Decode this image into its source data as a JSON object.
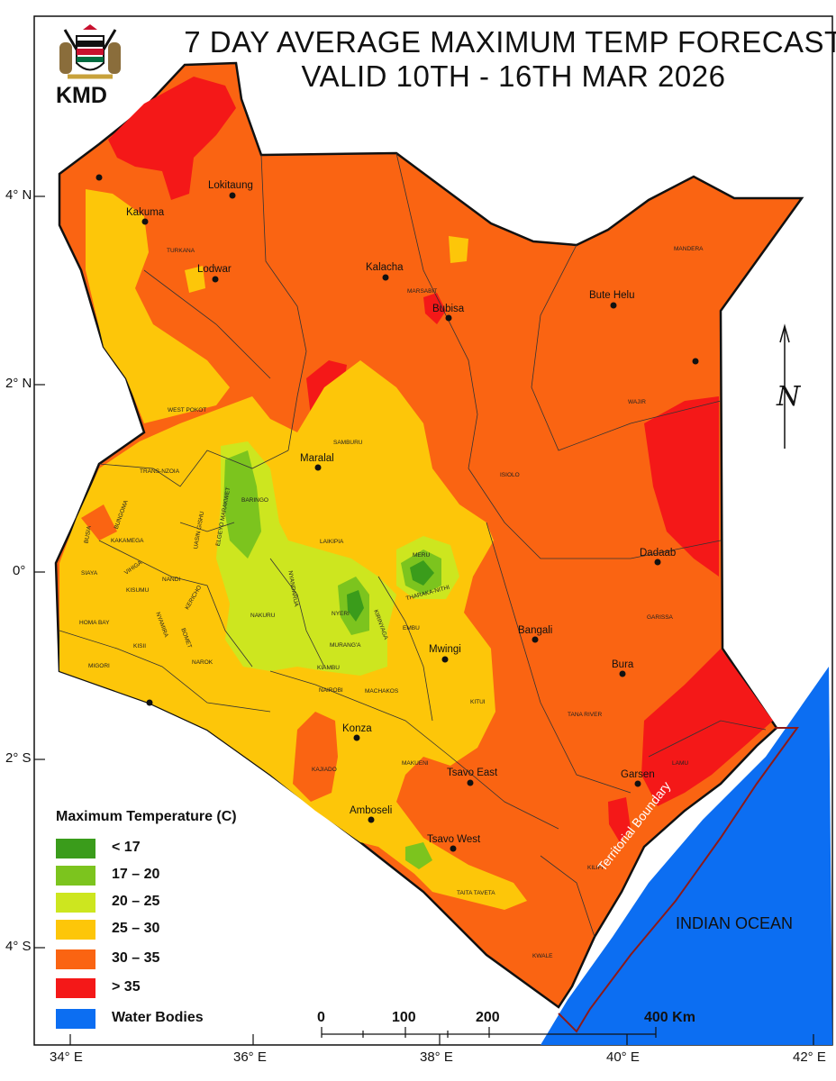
{
  "title": {
    "line1": "7 DAY AVERAGE MAXIMUM TEMP FORECAST",
    "line2": "VALID 10TH - 16TH MAR 2026"
  },
  "logo": {
    "text": "KMD",
    "icon": "kenya-coat-of-arms-icon"
  },
  "axes": {
    "latitude": [
      "4° N",
      "2° N",
      "0°",
      "2° S",
      "4° S"
    ],
    "longitude": [
      "34° E",
      "36° E",
      "38° E",
      "40° E",
      "42° E"
    ]
  },
  "legend": {
    "title": "Maximum Temperature (C)",
    "items": [
      {
        "label": "< 17",
        "color": "#3a9c1b"
      },
      {
        "label": "17 – 20",
        "color": "#7cc41e"
      },
      {
        "label": "20 – 25",
        "color": "#cde61f"
      },
      {
        "label": "25 – 30",
        "color": "#fdc609"
      },
      {
        "label": "30 – 35",
        "color": "#fa6412"
      },
      {
        "label": "> 35",
        "color": "#f41818"
      },
      {
        "label": "Water Bodies",
        "color": "#0c6ef2"
      }
    ]
  },
  "scale_bar": {
    "ticks": [
      "0",
      "100",
      "200",
      "400 Km"
    ]
  },
  "compass": {
    "symbol": "N",
    "icon": "north-arrow-icon"
  },
  "water": {
    "ocean_label": "INDIAN OCEAN",
    "boundary_label": "Territorial Boundary"
  },
  "cities": [
    "Lokitaung",
    "Kakuma",
    "Lodwar",
    "Kalacha",
    "Bubisa",
    "Bute Helu",
    "Maralal",
    "Dadaab",
    "Bangali",
    "Mwingi",
    "Bura",
    "Konza",
    "Tsavo East",
    "Garsen",
    "Amboseli",
    "Tsavo West"
  ],
  "counties": [
    "TURKANA",
    "MARSABIT",
    "MANDERA",
    "WAJIR",
    "WEST POKOT",
    "SAMBURU",
    "TRANS-NZOIA",
    "BARINGO",
    "ISIOLO",
    "BUNGOMA",
    "BUSIA",
    "KAKAMEGA",
    "UASIN GISHU",
    "ELGEYO MARAKWET",
    "LAIKIPIA",
    "MERU",
    "SIAYA",
    "VIHIGA",
    "NANDI",
    "KISUMU",
    "KERICHO",
    "NAKURU",
    "NYANDARUA",
    "NYERI",
    "THARAKA-NITHI",
    "KIRINYAGA",
    "EMBU",
    "GARISSA",
    "HOMA BAY",
    "NYAMIRA",
    "KISII",
    "BOMET",
    "MURANG'A",
    "MIGORI",
    "KIAMBU",
    "NAROK",
    "NAIROBI",
    "MACHAKOS",
    "KITUI",
    "TANA RIVER",
    "KAJIADO",
    "MAKUENI",
    "LAMU",
    "KILIFI",
    "TAITA TAVETA",
    "KWALE"
  ]
}
